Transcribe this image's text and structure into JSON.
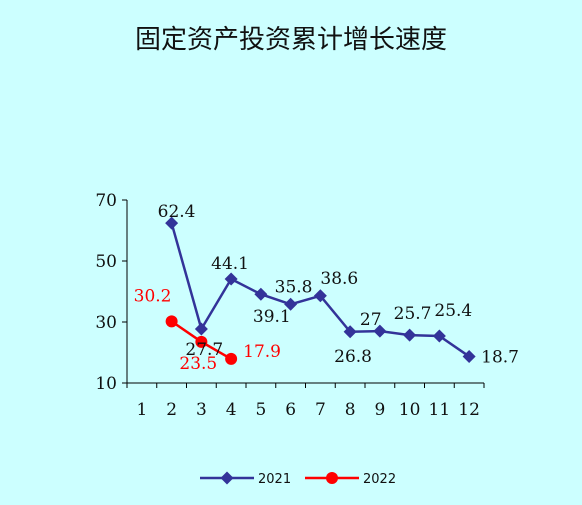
{
  "colors": {
    "background": "#ccffff",
    "series_2021": "#333399",
    "series_2022": "#ff0000",
    "axis": "#000000"
  },
  "chart_data": {
    "type": "line",
    "title": "固定资产投资累计增长速度",
    "xlabel": "",
    "ylabel": "",
    "x": [
      "1",
      "2",
      "3",
      "4",
      "5",
      "6",
      "7",
      "8",
      "9",
      "10",
      "11",
      "12"
    ],
    "yticks": [
      "10",
      "30",
      "50",
      "70"
    ],
    "ylim": [
      10,
      70
    ],
    "grid": false,
    "legend_position": "bottom",
    "series": [
      {
        "name": "2021",
        "marker": "diamond",
        "values": [
          null,
          62.4,
          27.7,
          44.1,
          39.1,
          35.8,
          38.6,
          26.8,
          27,
          25.7,
          25.4,
          18.7
        ],
        "labels": [
          "",
          "62.4",
          "27.7",
          "44.1",
          "39.1",
          "35.8",
          "38.6",
          "26.8",
          "27",
          "25.7",
          "25.4",
          "18.7"
        ]
      },
      {
        "name": "2022",
        "marker": "circle",
        "values": [
          null,
          30.2,
          23.5,
          17.9,
          null,
          null,
          null,
          null,
          null,
          null,
          null,
          null
        ],
        "labels": [
          "",
          "30.2",
          "23.5",
          "17.9",
          "",
          "",
          "",
          "",
          "",
          "",
          "",
          ""
        ]
      }
    ]
  }
}
